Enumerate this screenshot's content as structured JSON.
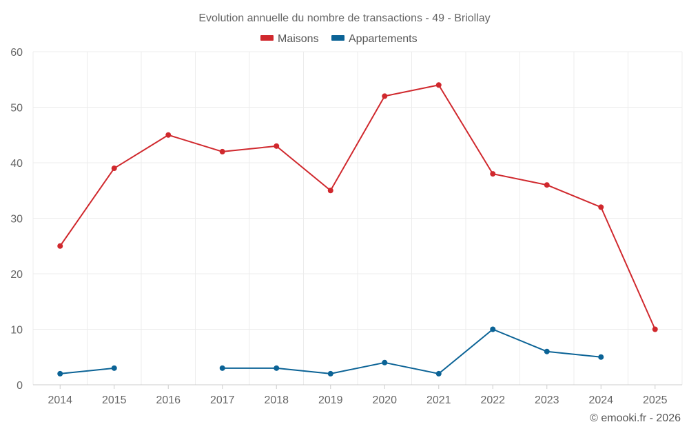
{
  "chart_data": {
    "type": "line",
    "title": "Evolution annuelle du nombre de transactions - 49 - Briollay",
    "categories": [
      "2014",
      "2015",
      "2016",
      "2017",
      "2018",
      "2019",
      "2020",
      "2021",
      "2022",
      "2023",
      "2024",
      "2025"
    ],
    "series": [
      {
        "name": "Maisons",
        "color": "#d0282d",
        "values": [
          25,
          39,
          45,
          42,
          43,
          35,
          52,
          54,
          38,
          36,
          32,
          10
        ]
      },
      {
        "name": "Appartements",
        "color": "#0b6396",
        "values": [
          2,
          3,
          null,
          3,
          3,
          2,
          4,
          2,
          10,
          6,
          5,
          null
        ]
      }
    ],
    "ylim": [
      0,
      60
    ],
    "yticks": [
      "0",
      "10",
      "20",
      "30",
      "40",
      "50",
      "60"
    ],
    "xlabel": "",
    "ylabel": "",
    "legend_position": "top-center",
    "grid": true
  },
  "credit": "© emooki.fr - 2026"
}
